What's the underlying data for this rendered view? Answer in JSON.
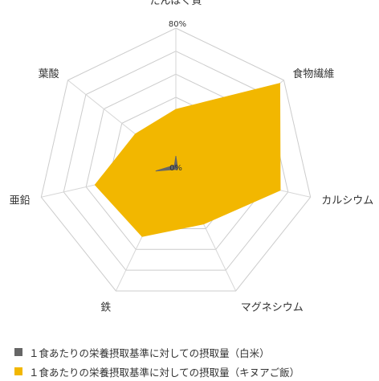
{
  "chart_data": {
    "type": "radar",
    "axes": [
      "たんぱく質",
      "食物繊維",
      "カルシウム",
      "マグネシウム",
      "鉄",
      "亜鉛",
      "葉酸"
    ],
    "range": [
      0,
      80
    ],
    "unit": "%",
    "ticks": [
      "0%",
      "80%"
    ],
    "grid_levels": 6,
    "legend_position": "bottom",
    "series": [
      {
        "name": "１食あたりの栄養摂取基準に対しての摂取量（白米）",
        "color": "#666666",
        "values": [
          6,
          1,
          1,
          2,
          2,
          12,
          1
        ]
      },
      {
        "name": "１食あたりの栄養摂取基準に対しての摂取量（キヌアご飯）",
        "color": "#f2b700",
        "values": [
          33,
          77,
          62,
          37,
          45,
          48,
          30
        ]
      }
    ]
  }
}
